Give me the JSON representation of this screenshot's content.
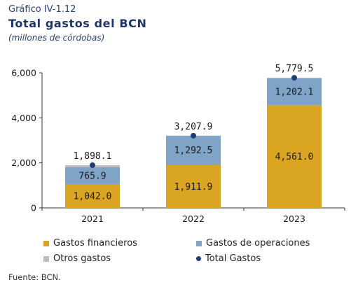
{
  "header": {
    "kicker": "Gráfico IV-1.12",
    "title": "Total gastos del BCN",
    "subtitle": "(millones de córdobas)"
  },
  "chart_data": {
    "type": "bar",
    "stacked": true,
    "categories": [
      "2021",
      "2022",
      "2023"
    ],
    "series": [
      {
        "name": "Gastos financieros",
        "color": "#DAA520",
        "values": [
          1042.0,
          1911.9,
          4561.0
        ],
        "labels": [
          "1,042.0",
          "1,911.9",
          "4,561.0"
        ]
      },
      {
        "name": "Gastos de operaciones",
        "color": "#7FA4C7",
        "values": [
          765.9,
          1292.5,
          1202.1
        ],
        "labels": [
          "765.9",
          "1,292.5",
          "1,202.1"
        ]
      },
      {
        "name": "Otros gastos",
        "color": "#BEBEBE",
        "values": [
          90.2,
          3.5,
          16.4
        ]
      }
    ],
    "total": {
      "name": "Total Gastos",
      "color": "#1F3D7A",
      "values": [
        1898.1,
        3207.9,
        5779.5
      ],
      "labels": [
        "1,898.1",
        "3,207.9",
        "5,779.5"
      ]
    },
    "ylim": [
      0,
      6000
    ],
    "yticks": [
      0,
      2000,
      4000,
      6000
    ],
    "ytick_labels": [
      "0",
      "2,000",
      "4,000",
      "6,000"
    ],
    "grid": false,
    "legend_position": "bottom"
  },
  "source": "Fuente: BCN."
}
